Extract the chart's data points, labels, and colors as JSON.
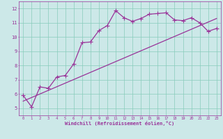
{
  "xlabel": "Windchill (Refroidissement éolien,°C)",
  "background_color": "#cce8e8",
  "line_color": "#993399",
  "xlim": [
    -0.5,
    23.5
  ],
  "ylim": [
    4.5,
    12.5
  ],
  "xticks": [
    0,
    1,
    2,
    3,
    4,
    5,
    6,
    7,
    8,
    9,
    10,
    11,
    12,
    13,
    14,
    15,
    16,
    17,
    18,
    19,
    20,
    21,
    22,
    23
  ],
  "yticks": [
    5,
    6,
    7,
    8,
    9,
    10,
    11,
    12
  ],
  "grid_color": "#88ccbb",
  "line1_x": [
    0,
    1,
    2,
    3,
    4,
    5,
    6,
    7,
    8,
    9,
    10,
    11,
    12,
    13,
    14,
    15,
    16,
    17,
    18,
    19,
    20,
    21,
    22,
    23
  ],
  "line1_y": [
    5.9,
    5.1,
    6.5,
    6.4,
    7.2,
    7.3,
    8.1,
    9.6,
    9.65,
    10.45,
    10.8,
    11.85,
    11.35,
    11.1,
    11.3,
    11.6,
    11.65,
    11.7,
    11.2,
    11.15,
    11.35,
    11.0,
    10.4,
    10.6
  ],
  "line2_x": [
    0,
    23
  ],
  "line2_y": [
    5.5,
    11.3
  ],
  "marker": "+",
  "markersize": 4,
  "linewidth": 0.9
}
